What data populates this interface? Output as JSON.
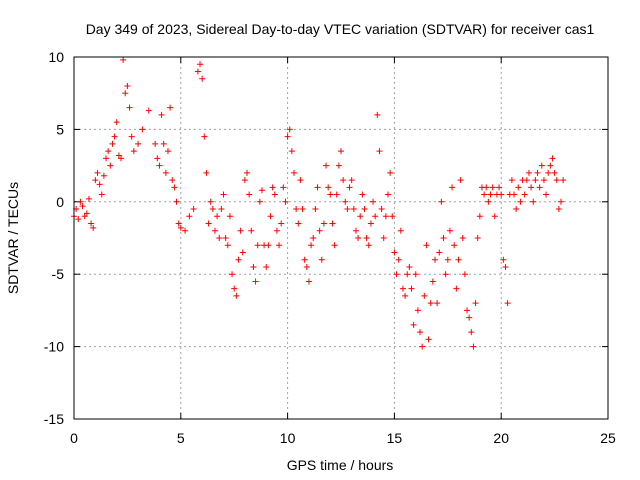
{
  "chart_data": {
    "type": "scatter",
    "title": "Day 349 of 2023, Sidereal Day-to-day VTEC variation (SDTVAR) for receiver cas1",
    "xlabel": "GPS time / hours",
    "ylabel": "SDTVAR / TECUs",
    "xlim": [
      0,
      25
    ],
    "ylim": [
      -15,
      10
    ],
    "xticks": [
      0,
      5,
      10,
      15,
      20,
      25
    ],
    "yticks": [
      -15,
      -10,
      -5,
      0,
      5,
      10
    ],
    "grid": true,
    "marker": "+",
    "color": "#ff0000",
    "series": [
      {
        "name": "SDTVAR",
        "x": [
          0.0,
          0.1,
          0.2,
          0.3,
          0.4,
          0.5,
          0.6,
          0.7,
          0.8,
          0.9,
          1.0,
          1.1,
          1.2,
          1.3,
          1.4,
          1.5,
          1.6,
          1.7,
          1.8,
          1.9,
          2.0,
          2.1,
          2.2,
          2.3,
          2.4,
          2.5,
          2.6,
          2.7,
          2.8,
          3.0,
          3.2,
          3.5,
          3.8,
          3.9,
          4.0,
          4.1,
          4.2,
          4.3,
          4.4,
          4.5,
          4.6,
          4.7,
          4.8,
          4.9,
          5.0,
          5.2,
          5.4,
          5.6,
          5.8,
          5.9,
          6.0,
          6.1,
          6.2,
          6.3,
          6.4,
          6.5,
          6.6,
          6.7,
          6.8,
          6.9,
          7.0,
          7.1,
          7.2,
          7.3,
          7.4,
          7.5,
          7.6,
          7.7,
          7.8,
          7.9,
          8.0,
          8.1,
          8.2,
          8.3,
          8.4,
          8.5,
          8.6,
          8.7,
          8.8,
          8.9,
          9.0,
          9.1,
          9.2,
          9.3,
          9.4,
          9.5,
          9.6,
          9.7,
          9.8,
          9.9,
          10.0,
          10.1,
          10.2,
          10.3,
          10.4,
          10.5,
          10.6,
          10.7,
          10.8,
          10.9,
          11.0,
          11.1,
          11.2,
          11.3,
          11.4,
          11.5,
          11.6,
          11.7,
          11.8,
          11.9,
          12.0,
          12.1,
          12.2,
          12.3,
          12.4,
          12.5,
          12.6,
          12.7,
          12.8,
          12.9,
          13.0,
          13.1,
          13.2,
          13.3,
          13.4,
          13.5,
          13.6,
          13.7,
          13.8,
          13.9,
          14.0,
          14.1,
          14.2,
          14.3,
          14.4,
          14.5,
          14.6,
          14.7,
          14.8,
          14.9,
          15.0,
          15.1,
          15.2,
          15.3,
          15.4,
          15.5,
          15.6,
          15.7,
          15.8,
          15.9,
          16.0,
          16.1,
          16.2,
          16.3,
          16.4,
          16.5,
          16.6,
          16.7,
          16.8,
          16.9,
          17.0,
          17.1,
          17.2,
          17.3,
          17.4,
          17.5,
          17.6,
          17.7,
          17.8,
          17.9,
          18.0,
          18.1,
          18.2,
          18.3,
          18.4,
          18.5,
          18.6,
          18.7,
          18.8,
          18.9,
          19.0,
          19.1,
          19.2,
          19.3,
          19.4,
          19.5,
          19.6,
          19.7,
          19.8,
          19.9,
          20.0,
          20.1,
          20.2,
          20.3,
          20.4,
          20.5,
          20.6,
          20.7,
          20.8,
          20.9,
          21.0,
          21.1,
          21.2,
          21.3,
          21.4,
          21.5,
          21.6,
          21.7,
          21.8,
          21.9,
          22.0,
          22.1,
          22.2,
          22.3,
          22.4,
          22.5,
          22.6,
          22.7,
          22.8,
          22.9
        ],
        "y": [
          -1.0,
          -0.5,
          -1.2,
          0.0,
          -0.3,
          -1.0,
          -0.8,
          0.2,
          -1.5,
          -1.8,
          1.5,
          2.0,
          1.2,
          0.5,
          1.8,
          3.0,
          3.5,
          2.5,
          4.0,
          4.5,
          5.5,
          3.2,
          3.0,
          9.8,
          7.5,
          8.0,
          6.5,
          4.5,
          3.5,
          4.0,
          5.0,
          6.3,
          4.0,
          3.0,
          2.5,
          6.0,
          4.0,
          2.0,
          3.5,
          6.5,
          1.5,
          1.0,
          0.0,
          -1.5,
          -1.8,
          -2.0,
          -1.0,
          -0.5,
          9.0,
          9.5,
          8.5,
          4.5,
          2.0,
          -1.5,
          0.0,
          -0.5,
          -2.0,
          -1.0,
          -2.5,
          -0.5,
          0.5,
          -2.5,
          -3.0,
          -1.0,
          -5.0,
          -6.0,
          -6.5,
          -4.0,
          -2.0,
          -3.5,
          1.5,
          2.0,
          0.5,
          -2.0,
          -4.5,
          -5.5,
          -3.0,
          0.0,
          0.8,
          -3.0,
          -4.5,
          -3.0,
          -1.0,
          1.0,
          0.5,
          -2.0,
          -3.0,
          -1.5,
          1.0,
          0.0,
          4.5,
          5.0,
          3.5,
          2.0,
          -0.5,
          -1.5,
          1.5,
          -0.5,
          -4.0,
          -4.5,
          -5.5,
          -3.0,
          -2.5,
          -0.5,
          1.0,
          -2.0,
          -4.0,
          -1.5,
          2.5,
          1.0,
          0.5,
          -1.5,
          -3.0,
          0.5,
          2.5,
          3.5,
          1.5,
          0.0,
          -0.5,
          1.0,
          1.5,
          -0.5,
          -2.0,
          -2.5,
          -1.0,
          0.5,
          -0.5,
          -2.5,
          -3.0,
          -1.5,
          0.0,
          -1.0,
          6.0,
          3.5,
          -0.5,
          -2.5,
          -1.0,
          0.5,
          2.0,
          -1.0,
          -3.5,
          -5.0,
          -4.0,
          -2.0,
          -6.0,
          -6.5,
          -5.0,
          -4.5,
          -6.0,
          -8.5,
          -5.0,
          -7.5,
          -9.0,
          -10.0,
          -6.5,
          -3.0,
          -9.5,
          -7.0,
          -5.5,
          -4.0,
          -7.0,
          -3.5,
          0.0,
          -2.5,
          -5.0,
          -4.0,
          -2.0,
          1.0,
          -3.0,
          -6.0,
          -4.0,
          1.5,
          -2.5,
          -5.0,
          -7.5,
          -8.0,
          -9.0,
          -10.0,
          -7.0,
          -2.5,
          -1.0,
          1.0,
          0.5,
          1.0,
          0.0,
          0.5,
          1.0,
          -1.0,
          0.5,
          1.0,
          0.5,
          -4.0,
          -4.5,
          -7.0,
          0.5,
          1.5,
          0.5,
          -0.5,
          1.0,
          0.0,
          1.5,
          0.5,
          1.5,
          2.0,
          1.0,
          0.0,
          1.5,
          2.0,
          1.0,
          2.5,
          1.5,
          0.5,
          2.0,
          2.5,
          3.0,
          2.0,
          1.5,
          -0.5,
          0.0,
          1.5
        ]
      }
    ]
  }
}
